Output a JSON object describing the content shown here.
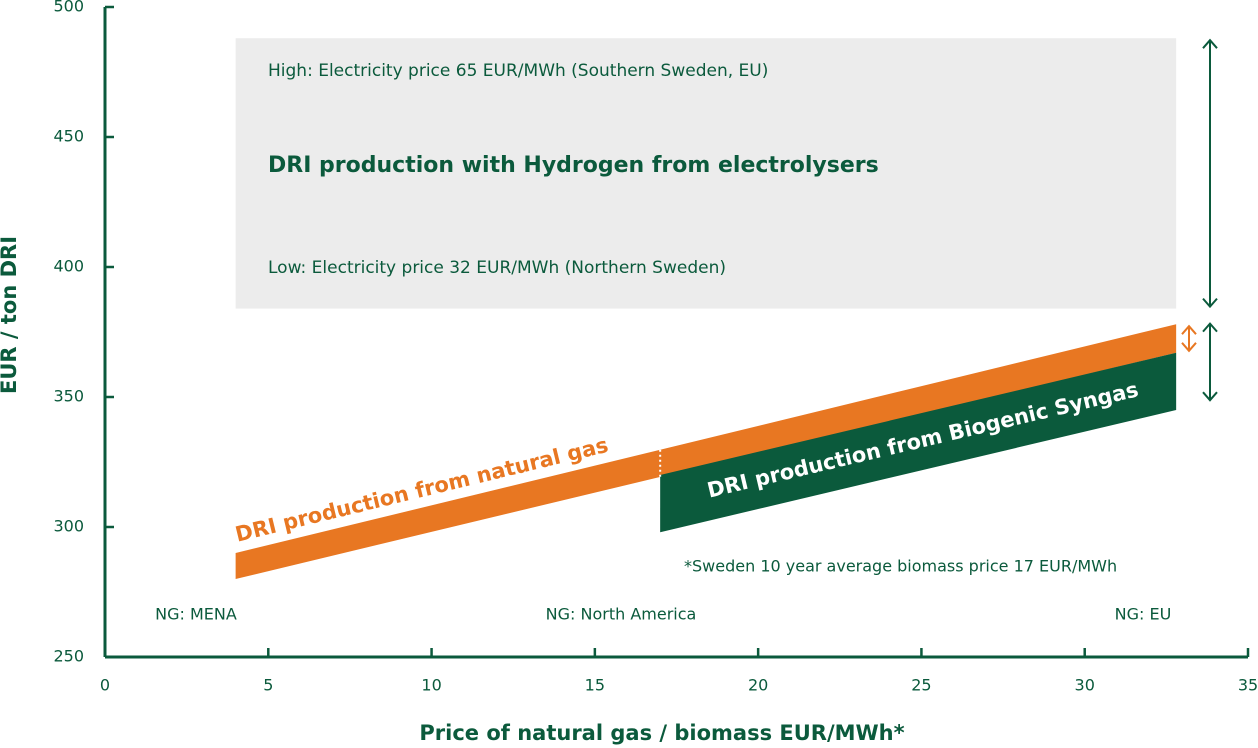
{
  "chart_data": {
    "type": "band",
    "x_label": "Price of natural gas / biomass EUR/MWh*",
    "y_label": "EUR / ton DRI",
    "xlim": [
      0,
      35
    ],
    "xticks": [
      0,
      5,
      10,
      15,
      20,
      25,
      30,
      35
    ],
    "ylim": [
      250,
      500
    ],
    "yticks": [
      250,
      300,
      350,
      400,
      450,
      500
    ],
    "region": {
      "x": [
        4,
        32.8
      ],
      "y": [
        384,
        488
      ],
      "color": "#ececec",
      "high_label": "High: Electricity price 65 EUR/MWh (Southern Sweden, EU)",
      "title": "DRI production with Hydrogen from electrolysers",
      "low_label": "Low: Electricity price 32 EUR/MWh (Northern Sweden)"
    },
    "series": [
      {
        "name": "DRI production from natural gas",
        "color": "#e87722",
        "x": [
          4,
          32.8
        ],
        "low": [
          280,
          367
        ],
        "high": [
          290,
          378
        ]
      },
      {
        "name": "DRI production from Biogenic Syngas",
        "color": "#0b5a3c",
        "x": [
          17,
          32.8
        ],
        "low": [
          298,
          345
        ],
        "high": [
          320,
          367
        ]
      }
    ],
    "ranges": [
      {
        "color": "#0b5a3c",
        "low": 384,
        "high": 488
      },
      {
        "color": "#e87722",
        "low": 367,
        "high": 378
      },
      {
        "color": "#0b5a3c",
        "low": 348,
        "high": 379
      }
    ],
    "annotations": [
      "NG: MENA",
      "NG: North America",
      "NG: EU",
      "*Sweden 10 year average biomass price 17 EUR/MWh"
    ]
  }
}
